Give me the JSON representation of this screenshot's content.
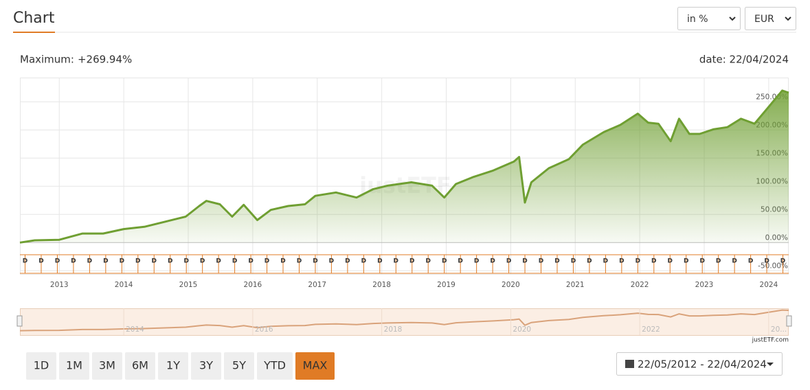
{
  "header": {
    "title": "Chart"
  },
  "controls": {
    "unit": "in %",
    "currency": "EUR"
  },
  "summary": {
    "label": "Maximum:",
    "value": "+269.94%",
    "date": "date: 22/04/2024"
  },
  "chart_data": {
    "type": "area",
    "color": "#6f9f32",
    "x": [
      2012.39,
      2012.62,
      2013.0,
      2013.36,
      2013.68,
      2014.0,
      2014.32,
      2014.64,
      2014.96,
      2015.17,
      2015.28,
      2015.49,
      2015.68,
      2015.86,
      2016.07,
      2016.28,
      2016.55,
      2016.81,
      2016.97,
      2017.29,
      2017.61,
      2017.87,
      2018.09,
      2018.46,
      2018.78,
      2018.97,
      2019.15,
      2019.41,
      2019.73,
      2020.05,
      2020.13,
      2020.22,
      2020.32,
      2020.59,
      2020.9,
      2021.12,
      2021.44,
      2021.7,
      2021.97,
      2022.13,
      2022.29,
      2022.48,
      2022.61,
      2022.77,
      2022.93,
      2023.14,
      2023.36,
      2023.57,
      2023.78,
      2024.0,
      2024.21,
      2024.31
    ],
    "values": [
      0,
      4,
      5,
      16,
      16,
      24,
      28,
      37,
      46,
      65,
      74,
      68,
      46,
      67,
      40,
      58,
      65,
      68,
      83,
      89,
      80,
      95,
      101,
      107,
      101,
      80,
      104,
      116,
      128,
      144,
      152,
      71,
      107,
      132,
      148,
      174,
      196,
      209,
      229,
      213,
      211,
      180,
      220,
      193,
      193,
      201,
      205,
      220,
      211,
      241,
      270,
      266
    ],
    "xlim": [
      2012.39,
      2024.31
    ],
    "xticks": [
      2013,
      2014,
      2015,
      2016,
      2017,
      2018,
      2019,
      2020,
      2021,
      2022,
      2023,
      2024
    ],
    "ylim": [
      -57,
      293
    ],
    "yticks": [
      {
        "value": -50,
        "label": "-50.00%"
      },
      {
        "value": 0,
        "label": "0.00%"
      },
      {
        "value": 50,
        "label": "50.00%"
      },
      {
        "value": 100,
        "label": "100.00%"
      },
      {
        "value": 150,
        "label": "150.00%"
      },
      {
        "value": 200,
        "label": "200.00%"
      },
      {
        "value": 250,
        "label": "250.00%"
      }
    ],
    "grid": true,
    "watermark": "justETF",
    "dividend_label": "D",
    "dividend_x": [
      2012.47,
      2012.72,
      2012.97,
      2013.22,
      2013.47,
      2013.72,
      2013.97,
      2014.22,
      2014.47,
      2014.72,
      2014.97,
      2015.22,
      2015.47,
      2015.72,
      2015.97,
      2016.22,
      2016.47,
      2016.72,
      2016.97,
      2017.22,
      2017.47,
      2017.72,
      2017.97,
      2018.22,
      2018.47,
      2018.72,
      2018.97,
      2019.22,
      2019.47,
      2019.72,
      2019.97,
      2020.22,
      2020.47,
      2020.72,
      2020.97,
      2021.22,
      2021.47,
      2021.72,
      2021.97,
      2022.22,
      2022.47,
      2022.72,
      2022.97,
      2023.22,
      2023.47,
      2023.72,
      2023.97,
      2024.22
    ],
    "navigator_xticks": [
      2014,
      2016,
      2018,
      2020,
      2022,
      {
        "value": 2024,
        "label": "20..."
      }
    ],
    "credit": "justETF.com"
  },
  "ranges": [
    "1D",
    "1M",
    "3M",
    "6M",
    "1Y",
    "3Y",
    "5Y",
    "YTD",
    "MAX"
  ],
  "active_range": "MAX",
  "date_range": "22/05/2012 - 22/04/2024"
}
